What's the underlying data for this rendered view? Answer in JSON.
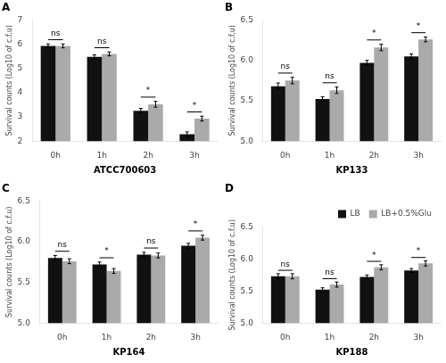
{
  "chart_data": [
    {
      "type": "bar",
      "panel_label": "A",
      "x_label": "ATCC700603",
      "y_label": "Survival counts (Log10 of c.f.u)",
      "categories": [
        "0h",
        "1h",
        "2h",
        "3h"
      ],
      "series": [
        {
          "name": "LB",
          "color": "#111111",
          "values": [
            5.93,
            5.48,
            3.25,
            2.28
          ],
          "errors": [
            0.08,
            0.08,
            0.1,
            0.1
          ]
        },
        {
          "name": "LB+0.5%Glu",
          "color": "#aaaaaa",
          "values": [
            5.93,
            5.6,
            3.52,
            2.93
          ],
          "errors": [
            0.08,
            0.08,
            0.12,
            0.1
          ]
        }
      ],
      "annotations": [
        "ns",
        "ns",
        "*",
        "*"
      ],
      "ylim": [
        2,
        7
      ],
      "yticks": [
        2,
        3,
        4,
        5,
        6,
        7
      ],
      "grid": false
    },
    {
      "type": "bar",
      "panel_label": "B",
      "x_label": "KP133",
      "y_label": "Survival counts (Log10 of c.f.u)",
      "categories": [
        "0h",
        "1h",
        "2h",
        "3h"
      ],
      "series": [
        {
          "name": "LB",
          "color": "#111111",
          "values": [
            5.68,
            5.52,
            5.97,
            6.05
          ],
          "errors": [
            0.04,
            0.03,
            0.03,
            0.03
          ]
        },
        {
          "name": "LB+0.5%Glu",
          "color": "#aaaaaa",
          "values": [
            5.75,
            5.63,
            6.16,
            6.26
          ],
          "errors": [
            0.04,
            0.04,
            0.04,
            0.03
          ]
        }
      ],
      "annotations": [
        "ns",
        "ns",
        "*",
        "*"
      ],
      "ylim": [
        5.0,
        6.5
      ],
      "yticks": [
        {
          "value": 5,
          "label": "5.0"
        },
        5.5,
        {
          "value": 6,
          "label": "6.0"
        },
        6.5
      ],
      "grid": false
    },
    {
      "type": "bar",
      "panel_label": "C",
      "x_label": "KP164",
      "y_label": "Survival counts (Log10 of c.f.u)",
      "categories": [
        "0h",
        "1h",
        "2h",
        "3h"
      ],
      "series": [
        {
          "name": "LB",
          "color": "#111111",
          "values": [
            5.8,
            5.72,
            5.84,
            5.95
          ],
          "errors": [
            0.03,
            0.03,
            0.03,
            0.03
          ]
        },
        {
          "name": "LB+0.5%Glu",
          "color": "#aaaaaa",
          "values": [
            5.76,
            5.64,
            5.83,
            6.05
          ],
          "errors": [
            0.03,
            0.03,
            0.03,
            0.03
          ]
        }
      ],
      "annotations": [
        "ns",
        "*",
        "ns",
        "*"
      ],
      "ylim": [
        5.0,
        6.5
      ],
      "yticks": [
        {
          "value": 5,
          "label": "5.0"
        },
        5.5,
        {
          "value": 6,
          "label": "6.0"
        },
        6.5
      ],
      "grid": false
    },
    {
      "type": "bar",
      "panel_label": "D",
      "x_label": "KP188",
      "y_label": "Survival counts (Log10 of c.f.u)",
      "categories": [
        "0h",
        "1h",
        "2h",
        "3h"
      ],
      "series": [
        {
          "name": "LB",
          "color": "#111111",
          "values": [
            5.73,
            5.52,
            5.72,
            5.82
          ],
          "errors": [
            0.04,
            0.03,
            0.03,
            0.03
          ]
        },
        {
          "name": "LB+0.5%Glu",
          "color": "#aaaaaa",
          "values": [
            5.73,
            5.6,
            5.87,
            5.93
          ],
          "errors": [
            0.04,
            0.04,
            0.04,
            0.04
          ]
        }
      ],
      "annotations": [
        "ns",
        "ns",
        "*",
        "*"
      ],
      "ylim": [
        5.0,
        6.5
      ],
      "yticks": [
        {
          "value": 5,
          "label": "5.0"
        },
        5.5,
        {
          "value": 6,
          "label": "6.0"
        },
        6.5
      ],
      "grid": false,
      "legend": "upper right"
    }
  ]
}
